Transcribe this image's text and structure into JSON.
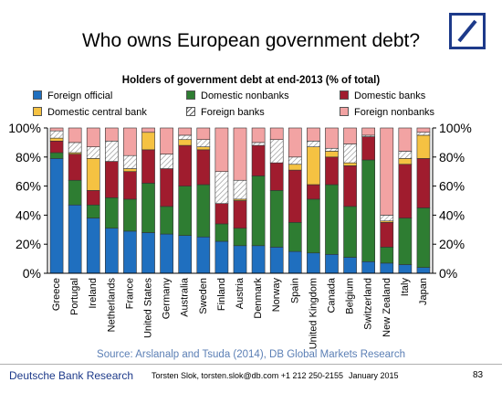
{
  "slide": {
    "title": "Who owns European government debt?",
    "source": "Source: Arslanalp and Tsuda (2014), DB Global Markets Research",
    "footer": {
      "brand": "Deutsche Bank Research",
      "author": "Torsten Slok, torsten.slok@db.com +1 212 250-2155",
      "date": "January 2015",
      "page": "83"
    },
    "logo_icon": "deutsche-bank-slash-square-logo"
  },
  "chart_data": {
    "type": "bar",
    "stacked": true,
    "title": "Holders of government debt at end-2013 (% of total)",
    "xlabel": "",
    "ylabel": "",
    "ylim": [
      0,
      100
    ],
    "yticks": [
      "0%",
      "20%",
      "40%",
      "60%",
      "80%",
      "100%"
    ],
    "grid": false,
    "legend_position": "top",
    "categories": [
      "Greece",
      "Portugal",
      "Ireland",
      "Netherlands",
      "France",
      "United States",
      "Germany",
      "Australia",
      "Sweden",
      "Finland",
      "Austria",
      "Denmark",
      "Norway",
      "Spain",
      "United Kingdom",
      "Canada",
      "Belgium",
      "Switzerland",
      "New Zealand",
      "Italy",
      "Japan"
    ],
    "series": [
      {
        "name": "Foreign official",
        "color": "#1f6fbf",
        "pattern": "solid",
        "values": [
          79,
          47,
          38,
          31,
          29,
          28,
          27,
          26,
          25,
          22,
          19,
          19,
          18,
          15,
          14,
          13,
          11,
          8,
          7,
          6,
          4
        ]
      },
      {
        "name": "Domestic nonbanks",
        "color": "#2e7d32",
        "pattern": "solid",
        "values": [
          4,
          17,
          9,
          21,
          22,
          34,
          19,
          34,
          36,
          12,
          12,
          48,
          39,
          20,
          37,
          48,
          35,
          70,
          11,
          32,
          41
        ]
      },
      {
        "name": "Domestic banks",
        "color": "#a01c2e",
        "pattern": "solid",
        "values": [
          8,
          18,
          10,
          25,
          19,
          23,
          26,
          28,
          24,
          14,
          19,
          21,
          19,
          36,
          10,
          19,
          28,
          16,
          17,
          37,
          34
        ]
      },
      {
        "name": "Domestic central bank",
        "color": "#f5c242",
        "pattern": "solid",
        "values": [
          2,
          1,
          22,
          0,
          2,
          12,
          0,
          4,
          2,
          0,
          1,
          0,
          0,
          4,
          26,
          4,
          2,
          0,
          1,
          4,
          16
        ]
      },
      {
        "name": "Foreign banks",
        "color": "#ffffff",
        "pattern": "hatch",
        "values": [
          5,
          7,
          8,
          14,
          9,
          0,
          10,
          3,
          5,
          22,
          13,
          2,
          16,
          5,
          4,
          2,
          13,
          1,
          4,
          5,
          2
        ]
      },
      {
        "name": "Foreign nonbanks",
        "color": "#f2a3a3",
        "pattern": "solid",
        "values": [
          2,
          10,
          13,
          9,
          19,
          3,
          18,
          5,
          8,
          30,
          36,
          10,
          8,
          20,
          9,
          14,
          11,
          5,
          60,
          16,
          3
        ]
      }
    ]
  }
}
